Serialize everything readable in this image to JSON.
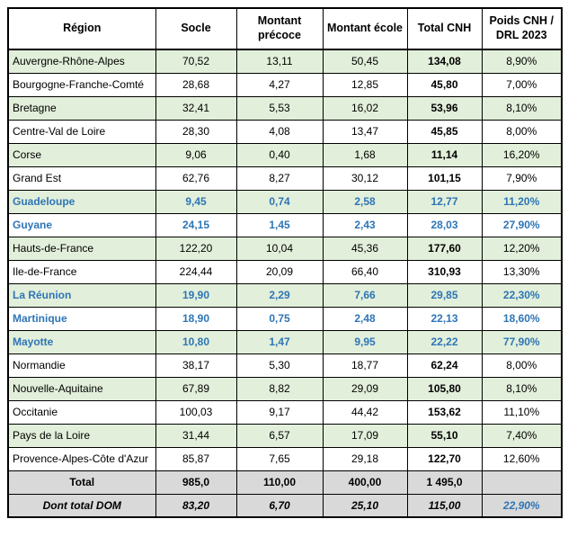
{
  "table": {
    "headers": [
      "Région",
      "Socle",
      "Montant précoce",
      "Montant école",
      "Total CNH",
      "Poids CNH / DRL 2023"
    ],
    "rows": [
      {
        "region": "Auvergne-Rhône-Alpes",
        "values": [
          "70,52",
          "13,11",
          "50,45",
          "134,08",
          "8,90%"
        ],
        "dom": false
      },
      {
        "region": "Bourgogne-Franche-Comté",
        "values": [
          "28,68",
          "4,27",
          "12,85",
          "45,80",
          "7,00%"
        ],
        "dom": false
      },
      {
        "region": "Bretagne",
        "values": [
          "32,41",
          "5,53",
          "16,02",
          "53,96",
          "8,10%"
        ],
        "dom": false
      },
      {
        "region": "Centre-Val de Loire",
        "values": [
          "28,30",
          "4,08",
          "13,47",
          "45,85",
          "8,00%"
        ],
        "dom": false
      },
      {
        "region": "Corse",
        "values": [
          "9,06",
          "0,40",
          "1,68",
          "11,14",
          "16,20%"
        ],
        "dom": false
      },
      {
        "region": "Grand Est",
        "values": [
          "62,76",
          "8,27",
          "30,12",
          "101,15",
          "7,90%"
        ],
        "dom": false
      },
      {
        "region": "Guadeloupe",
        "values": [
          "9,45",
          "0,74",
          "2,58",
          "12,77",
          "11,20%"
        ],
        "dom": true
      },
      {
        "region": "Guyane",
        "values": [
          "24,15",
          "1,45",
          "2,43",
          "28,03",
          "27,90%"
        ],
        "dom": true
      },
      {
        "region": "Hauts-de-France",
        "values": [
          "122,20",
          "10,04",
          "45,36",
          "177,60",
          "12,20%"
        ],
        "dom": false
      },
      {
        "region": "Ile-de-France",
        "values": [
          "224,44",
          "20,09",
          "66,40",
          "310,93",
          "13,30%"
        ],
        "dom": false
      },
      {
        "region": "La Réunion",
        "values": [
          "19,90",
          "2,29",
          "7,66",
          "29,85",
          "22,30%"
        ],
        "dom": true
      },
      {
        "region": "Martinique",
        "values": [
          "18,90",
          "0,75",
          "2,48",
          "22,13",
          "18,60%"
        ],
        "dom": true
      },
      {
        "region": "Mayotte",
        "values": [
          "10,80",
          "1,47",
          "9,95",
          "22,22",
          "77,90%"
        ],
        "dom": true
      },
      {
        "region": "Normandie",
        "values": [
          "38,17",
          "5,30",
          "18,77",
          "62,24",
          "8,00%"
        ],
        "dom": false
      },
      {
        "region": "Nouvelle-Aquitaine",
        "values": [
          "67,89",
          "8,82",
          "29,09",
          "105,80",
          "8,10%"
        ],
        "dom": false
      },
      {
        "region": "Occitanie",
        "values": [
          "100,03",
          "9,17",
          "44,42",
          "153,62",
          "11,10%"
        ],
        "dom": false
      },
      {
        "region": "Pays de la Loire",
        "values": [
          "31,44",
          "6,57",
          "17,09",
          "55,10",
          "7,40%"
        ],
        "dom": false
      },
      {
        "region": "Provence-Alpes-Côte d'Azur",
        "values": [
          "85,87",
          "7,65",
          "29,18",
          "122,70",
          "12,60%"
        ],
        "dom": false
      }
    ],
    "total_row": {
      "label": "Total",
      "values": [
        "985,0",
        "110,00",
        "400,00",
        "1 495,0",
        ""
      ]
    },
    "dom_total_row": {
      "label": "Dont total DOM",
      "values": [
        "83,20",
        "6,70",
        "25,10",
        "115,00",
        "22,90%"
      ]
    }
  },
  "colors": {
    "row_green": "#e2efda",
    "total_gray": "#d9d9d9",
    "dom_blue": "#2e75b6",
    "border": "#000000"
  }
}
